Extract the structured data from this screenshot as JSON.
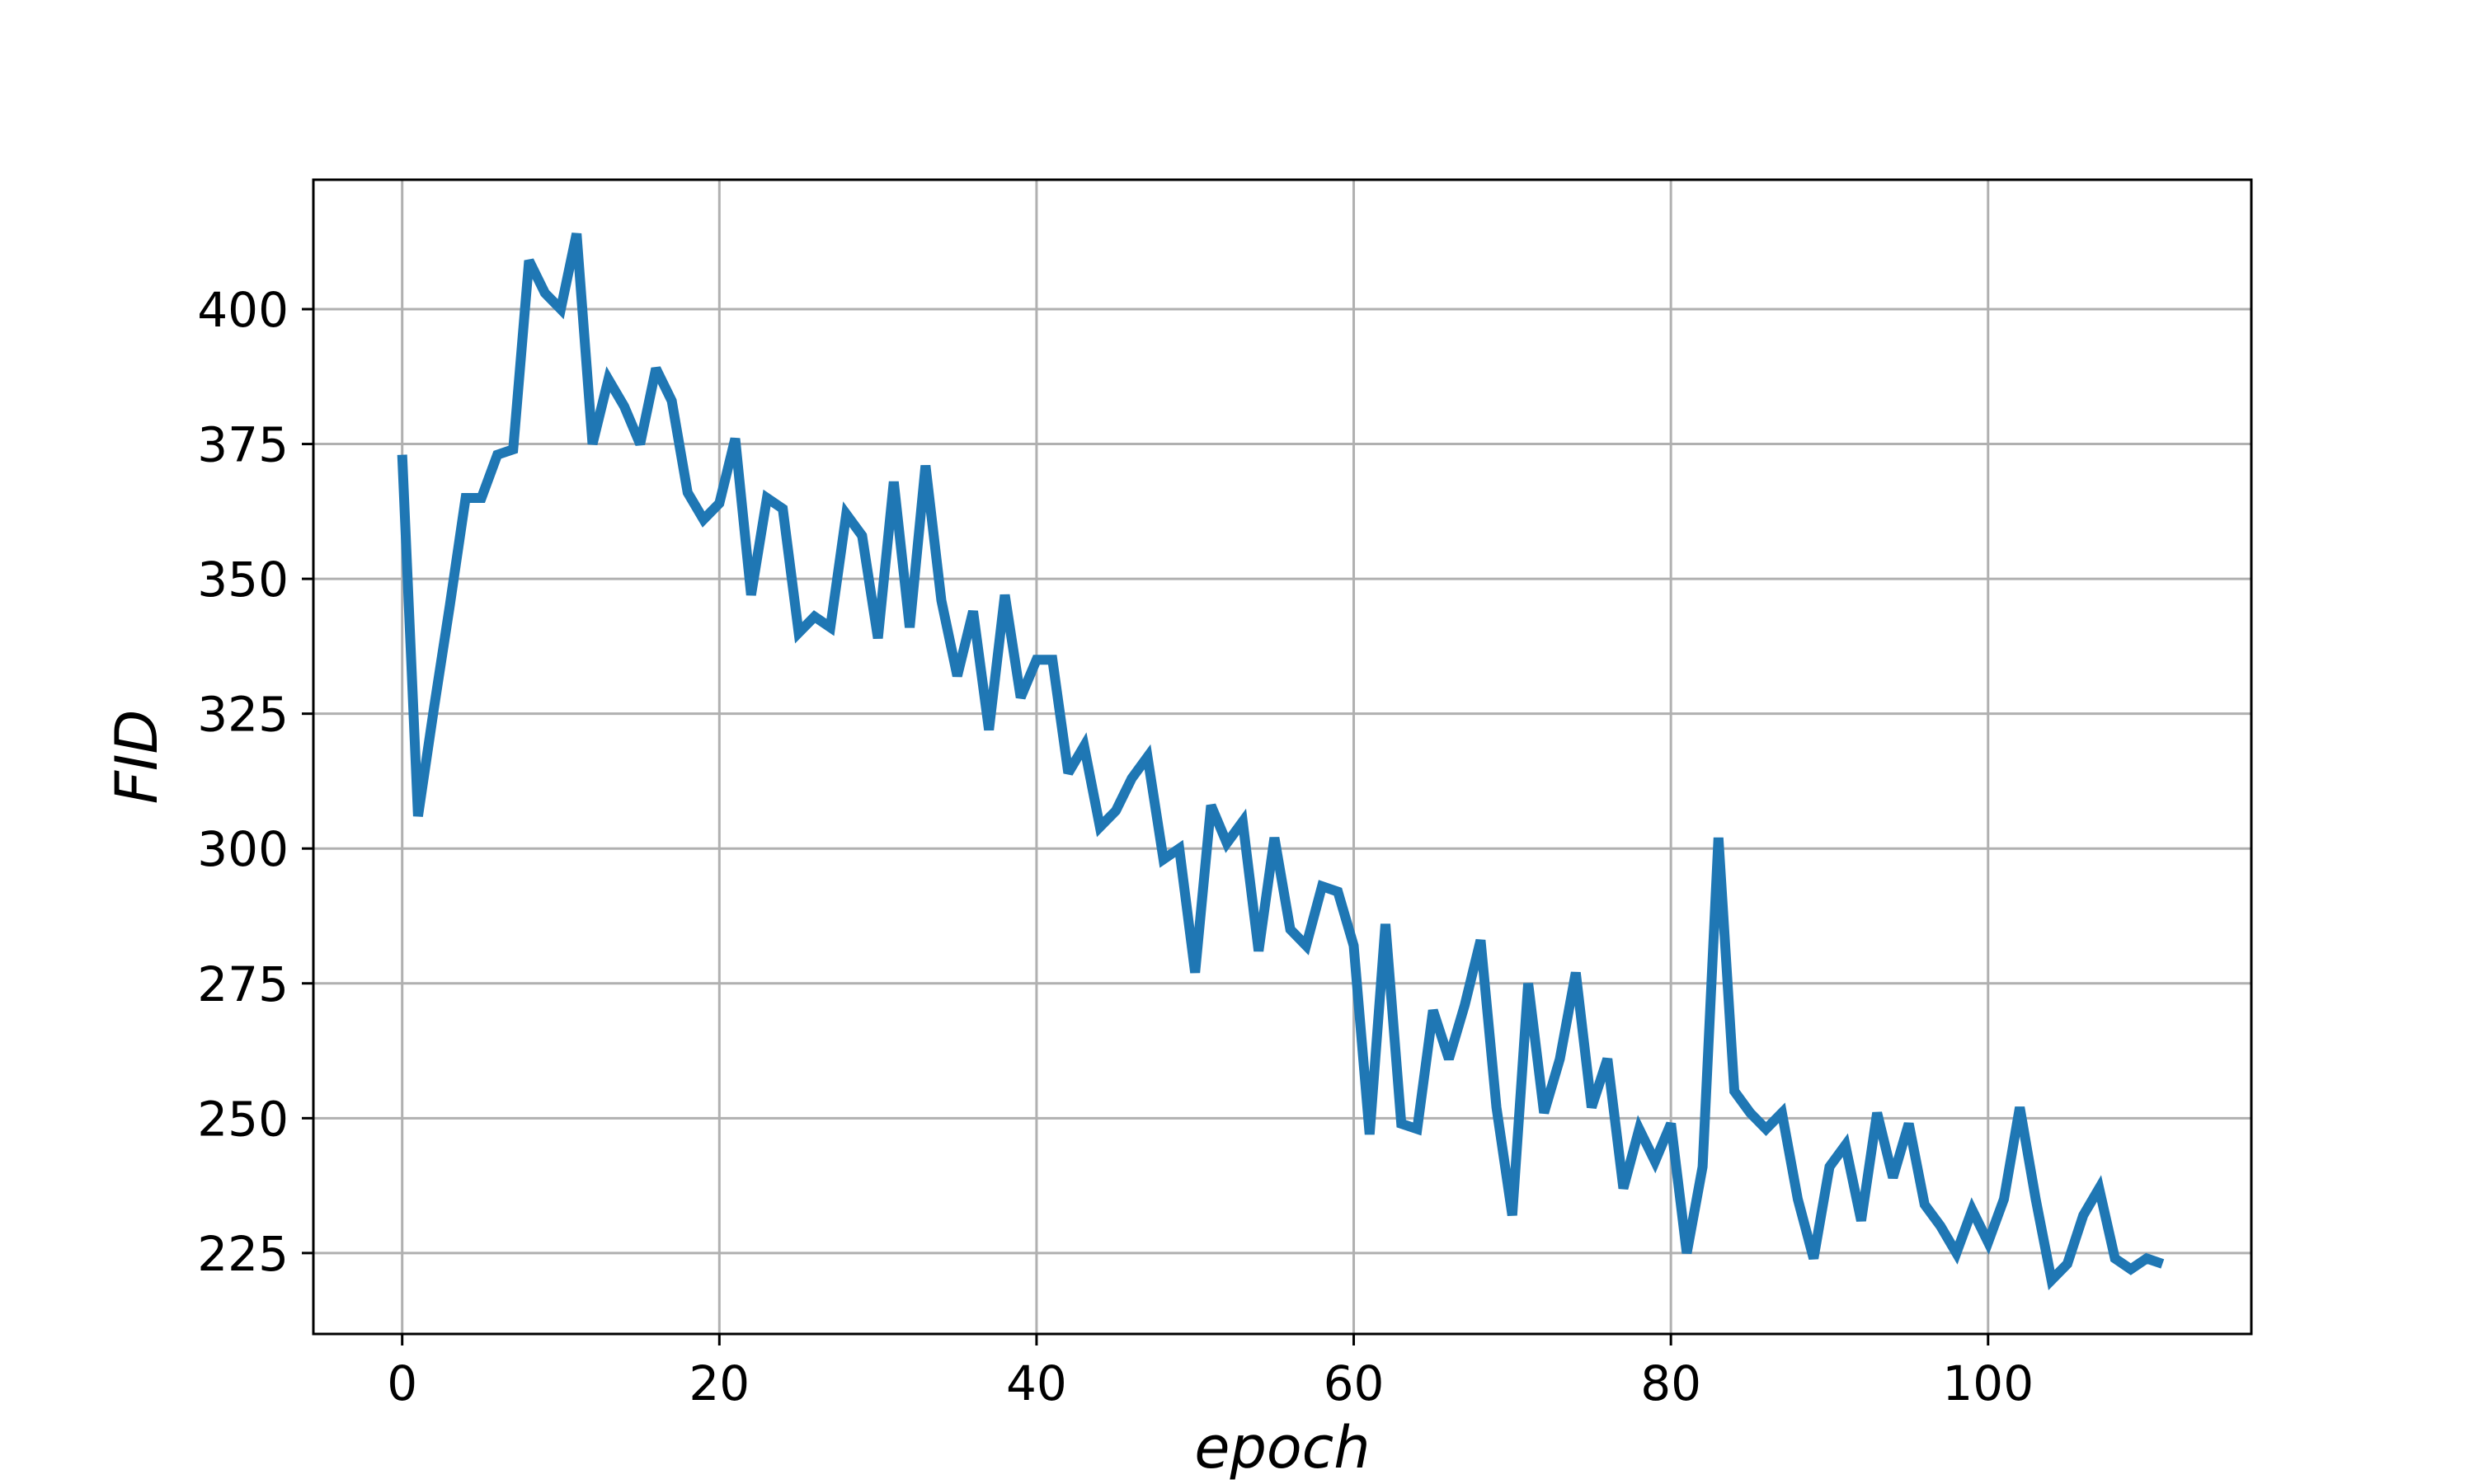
{
  "chart_data": {
    "type": "line",
    "title": "",
    "xlabel": "epoch",
    "ylabel": "FID",
    "xlim": [
      -5.6,
      116.6
    ],
    "ylim": [
      210,
      424
    ],
    "grid": true,
    "legend": "none",
    "x_ticks": [
      0,
      20,
      40,
      60,
      80,
      100
    ],
    "y_ticks": [
      225,
      250,
      275,
      300,
      325,
      350,
      375,
      400
    ],
    "series": [
      {
        "color": "#1f77b4",
        "x": [
          0,
          1,
          2,
          3,
          4,
          5,
          6,
          7,
          8,
          9,
          10,
          11,
          12,
          13,
          14,
          15,
          16,
          17,
          18,
          19,
          20,
          21,
          22,
          23,
          24,
          25,
          26,
          27,
          28,
          29,
          30,
          31,
          32,
          33,
          34,
          35,
          36,
          37,
          38,
          39,
          40,
          41,
          42,
          43,
          44,
          45,
          46,
          47,
          48,
          49,
          50,
          51,
          52,
          53,
          54,
          55,
          56,
          57,
          58,
          59,
          60,
          61,
          62,
          63,
          64,
          65,
          66,
          67,
          68,
          69,
          70,
          71,
          72,
          73,
          74,
          75,
          76,
          77,
          78,
          79,
          80,
          81,
          82,
          83,
          84,
          85,
          86,
          87,
          88,
          89,
          90,
          91,
          92,
          93,
          94,
          95,
          96,
          97,
          98,
          99,
          100,
          101,
          102,
          103,
          104,
          105,
          106,
          107,
          108,
          109,
          110,
          111
        ],
        "values": [
          373,
          306,
          326,
          345,
          365,
          365,
          373,
          374,
          409,
          403,
          400,
          414,
          375,
          387,
          382,
          375,
          389,
          383,
          366,
          361,
          364,
          376,
          347,
          365,
          363,
          340,
          343,
          341,
          362,
          358,
          339,
          368,
          341,
          371,
          346,
          332,
          344,
          322,
          347,
          328,
          335,
          335,
          314,
          319,
          304,
          307,
          313,
          317,
          298,
          300,
          277,
          308,
          301,
          305,
          281,
          302,
          285,
          282,
          293,
          292,
          282,
          247,
          286,
          249,
          248,
          270,
          261,
          271,
          283,
          252,
          232,
          275,
          251,
          261,
          277,
          252,
          261,
          237,
          248,
          242,
          249,
          225,
          241,
          302,
          255,
          251,
          248,
          251,
          235,
          224,
          241,
          245,
          231,
          251,
          239,
          249,
          234,
          230,
          225,
          233,
          227,
          235,
          252,
          235,
          220,
          223,
          232,
          237,
          224,
          222,
          224,
          223
        ]
      }
    ]
  }
}
